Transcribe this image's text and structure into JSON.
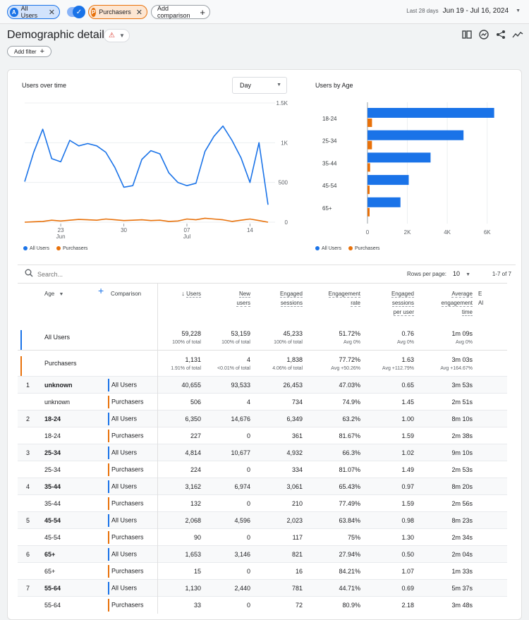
{
  "topbar": {
    "chip_all_users": {
      "letter": "A",
      "label": "All Users"
    },
    "chip_purchasers": {
      "letter": "P",
      "label": "Purchasers"
    },
    "add_comparison": "Add comparison",
    "date_label": "Last 28 days",
    "date_value": "Jun 19 - Jul 16, 2024"
  },
  "header": {
    "title": "Demographic details",
    "add_filter": "Add filter"
  },
  "users_over_time": {
    "title": "Users over time",
    "granularity": "Day",
    "y_ticks": [
      "1.5K",
      "1K",
      "500",
      "0"
    ],
    "x_ticks": [
      {
        "day": "23",
        "month": "Jun"
      },
      {
        "day": "30",
        "month": ""
      },
      {
        "day": "07",
        "month": "Jul"
      },
      {
        "day": "14",
        "month": ""
      }
    ],
    "legend": [
      "All Users",
      "Purchasers"
    ]
  },
  "users_by_age": {
    "title": "Users by Age",
    "x_ticks": [
      "0",
      "2K",
      "4K",
      "6K"
    ],
    "legend": [
      "All Users",
      "Purchasers"
    ]
  },
  "chart_data": [
    {
      "type": "line",
      "title": "Users over time",
      "x": [
        "Jun 19",
        "Jun 20",
        "Jun 21",
        "Jun 22",
        "Jun 23",
        "Jun 24",
        "Jun 25",
        "Jun 26",
        "Jun 27",
        "Jun 28",
        "Jun 29",
        "Jun 30",
        "Jul 1",
        "Jul 2",
        "Jul 3",
        "Jul 4",
        "Jul 5",
        "Jul 6",
        "Jul 7",
        "Jul 8",
        "Jul 9",
        "Jul 10",
        "Jul 11",
        "Jul 12",
        "Jul 13",
        "Jul 14",
        "Jul 15",
        "Jul 16"
      ],
      "ylim": [
        0,
        1500
      ],
      "series": [
        {
          "name": "All Users",
          "color": "#1a73e8",
          "values": [
            510,
            880,
            1170,
            800,
            760,
            1030,
            960,
            990,
            960,
            880,
            690,
            440,
            460,
            790,
            900,
            860,
            620,
            500,
            460,
            490,
            890,
            1080,
            1210,
            1030,
            810,
            500,
            1000,
            220
          ]
        },
        {
          "name": "Purchasers",
          "color": "#e8710a",
          "values": [
            0,
            5,
            10,
            25,
            15,
            25,
            35,
            30,
            25,
            40,
            30,
            20,
            25,
            30,
            20,
            25,
            10,
            15,
            40,
            30,
            50,
            40,
            30,
            10,
            25,
            40,
            20,
            0
          ]
        }
      ]
    },
    {
      "type": "bar",
      "title": "Users by Age",
      "orientation": "horizontal",
      "categories": [
        "18-24",
        "25-34",
        "35-44",
        "45-54",
        "65+"
      ],
      "xlim": [
        0,
        7000
      ],
      "series": [
        {
          "name": "All Users",
          "color": "#1a73e8",
          "values": [
            6350,
            4814,
            3162,
            2068,
            1653
          ]
        },
        {
          "name": "Purchasers",
          "color": "#e8710a",
          "values": [
            227,
            224,
            132,
            90,
            15
          ]
        }
      ]
    }
  ],
  "table": {
    "search_placeholder": "Search...",
    "rows_per_page_label": "Rows per page:",
    "rows_per_page": "10",
    "pagination": "1-7 of 7",
    "headers": {
      "dimension": "Age",
      "comparison": "Comparison",
      "users": "Users",
      "new_users_1": "New",
      "new_users_2": "users",
      "engaged_sessions_1": "Engaged",
      "engaged_sessions_2": "sessions",
      "engagement_rate_1": "Engagement",
      "engagement_rate_2": "rate",
      "esp_1": "Engaged",
      "esp_2": "sessions",
      "esp_3": "per user",
      "aet_1": "Average",
      "aet_2": "engagement",
      "aet_3": "time",
      "extra_1": "E",
      "extra_2": "Al"
    },
    "totals": [
      {
        "name": "All Users",
        "color": "#1a73e8",
        "users": "59,228",
        "users_sub": "100% of total",
        "new_users": "53,159",
        "new_users_sub": "100% of total",
        "engaged": "45,233",
        "engaged_sub": "100% of total",
        "rate": "51.72%",
        "rate_sub": "Avg 0%",
        "per_user": "0.76",
        "per_user_sub": "Avg 0%",
        "time": "1m 09s",
        "time_sub": "Avg 0%"
      },
      {
        "name": "Purchasers",
        "color": "#e8710a",
        "users": "1,131",
        "users_sub": "1.91% of total",
        "new_users": "4",
        "new_users_sub": "<0.01% of total",
        "engaged": "1,838",
        "engaged_sub": "4.06% of total",
        "rate": "77.72%",
        "rate_sub": "Avg +50.26%",
        "per_user": "1.63",
        "per_user_sub": "Avg +112.79%",
        "time": "3m 03s",
        "time_sub": "Avg +164.67%"
      }
    ],
    "rows": [
      {
        "idx": "1",
        "age": "unknown",
        "cmp": "All Users",
        "c": "#1a73e8",
        "users": "40,655",
        "new": "93,533",
        "eng": "26,453",
        "rate": "47.03%",
        "per": "0.65",
        "time": "3m 53s"
      },
      {
        "idx": "",
        "age": "unknown",
        "cmp": "Purchasers",
        "c": "#e8710a",
        "users": "506",
        "new": "4",
        "eng": "734",
        "rate": "74.9%",
        "per": "1.45",
        "time": "2m 51s"
      },
      {
        "idx": "2",
        "age": "18-24",
        "cmp": "All Users",
        "c": "#1a73e8",
        "users": "6,350",
        "new": "14,676",
        "eng": "6,349",
        "rate": "63.2%",
        "per": "1.00",
        "time": "8m 10s"
      },
      {
        "idx": "",
        "age": "18-24",
        "cmp": "Purchasers",
        "c": "#e8710a",
        "users": "227",
        "new": "0",
        "eng": "361",
        "rate": "81.67%",
        "per": "1.59",
        "time": "2m 38s"
      },
      {
        "idx": "3",
        "age": "25-34",
        "cmp": "All Users",
        "c": "#1a73e8",
        "users": "4,814",
        "new": "10,677",
        "eng": "4,932",
        "rate": "66.3%",
        "per": "1.02",
        "time": "9m 10s"
      },
      {
        "idx": "",
        "age": "25-34",
        "cmp": "Purchasers",
        "c": "#e8710a",
        "users": "224",
        "new": "0",
        "eng": "334",
        "rate": "81.07%",
        "per": "1.49",
        "time": "2m 53s"
      },
      {
        "idx": "4",
        "age": "35-44",
        "cmp": "All Users",
        "c": "#1a73e8",
        "users": "3,162",
        "new": "6,974",
        "eng": "3,061",
        "rate": "65.43%",
        "per": "0.97",
        "time": "8m 20s"
      },
      {
        "idx": "",
        "age": "35-44",
        "cmp": "Purchasers",
        "c": "#e8710a",
        "users": "132",
        "new": "0",
        "eng": "210",
        "rate": "77.49%",
        "per": "1.59",
        "time": "2m 56s"
      },
      {
        "idx": "5",
        "age": "45-54",
        "cmp": "All Users",
        "c": "#1a73e8",
        "users": "2,068",
        "new": "4,596",
        "eng": "2,023",
        "rate": "63.84%",
        "per": "0.98",
        "time": "8m 23s"
      },
      {
        "idx": "",
        "age": "45-54",
        "cmp": "Purchasers",
        "c": "#e8710a",
        "users": "90",
        "new": "0",
        "eng": "117",
        "rate": "75%",
        "per": "1.30",
        "time": "2m 34s"
      },
      {
        "idx": "6",
        "age": "65+",
        "cmp": "All Users",
        "c": "#1a73e8",
        "users": "1,653",
        "new": "3,146",
        "eng": "821",
        "rate": "27.94%",
        "per": "0.50",
        "time": "2m 04s"
      },
      {
        "idx": "",
        "age": "65+",
        "cmp": "Purchasers",
        "c": "#e8710a",
        "users": "15",
        "new": "0",
        "eng": "16",
        "rate": "84.21%",
        "per": "1.07",
        "time": "1m 33s"
      },
      {
        "idx": "7",
        "age": "55-64",
        "cmp": "All Users",
        "c": "#1a73e8",
        "users": "1,130",
        "new": "2,440",
        "eng": "781",
        "rate": "44.71%",
        "per": "0.69",
        "time": "5m 37s"
      },
      {
        "idx": "",
        "age": "55-64",
        "cmp": "Purchasers",
        "c": "#e8710a",
        "users": "33",
        "new": "0",
        "eng": "72",
        "rate": "80.9%",
        "per": "2.18",
        "time": "3m 48s"
      }
    ]
  }
}
